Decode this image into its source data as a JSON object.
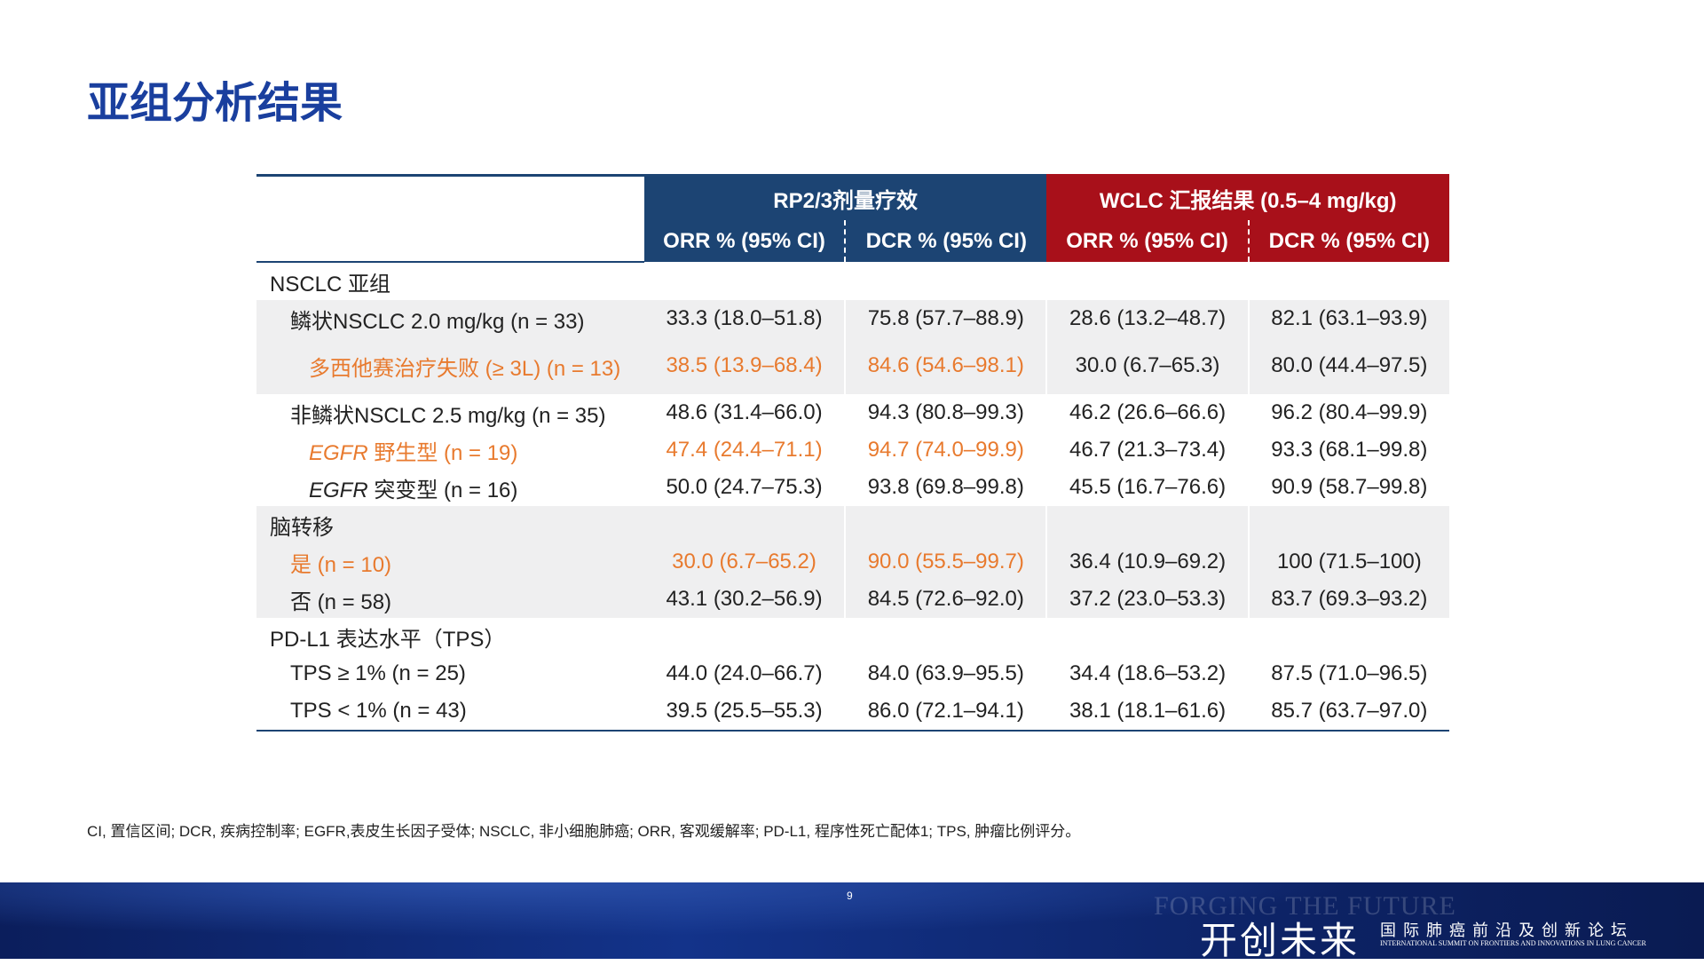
{
  "title": "亚组分析结果",
  "table": {
    "group_headers": [
      {
        "text": "RP2/3剂量疗效",
        "color": "#1c4473"
      },
      {
        "text": "WCLC 汇报结果 (0.5–4 mg/kg)",
        "color": "#a8101a"
      }
    ],
    "column_headers": [
      "ORR % (95% CI)",
      "DCR % (95% CI)",
      "ORR % (95% CI)",
      "DCR % (95% CI)"
    ],
    "sections": [
      {
        "label": "NSCLC 亚组",
        "rows": [
          {
            "label": "鳞状NSCLC 2.0 mg/kg (n = 33)",
            "shaded": true,
            "cells": [
              "33.3 (18.0–51.8)",
              "75.8 (57.7–88.9)",
              "28.6 (13.2–48.7)",
              "82.1 (63.1–93.9)"
            ],
            "children": [
              {
                "label": "多西他赛治疗失败 (≥ 3L) (n = 13)",
                "highlight": true,
                "cells": [
                  "38.5 (13.9–68.4)",
                  "84.6 (54.6–98.1)",
                  "30.0 (6.7–65.3)",
                  "80.0 (44.4–97.5)"
                ]
              }
            ]
          },
          {
            "label": "非鳞状NSCLC 2.5 mg/kg (n = 35)",
            "cells": [
              "48.6 (31.4–66.0)",
              "94.3 (80.8–99.3)",
              "46.2 (26.6–66.6)",
              "96.2 (80.4–99.9)"
            ],
            "children": [
              {
                "label_italic": "EGFR",
                "label": "野生型 (n = 19)",
                "highlight": true,
                "cells": [
                  "47.4 (24.4–71.1)",
                  "94.7 (74.0–99.9)",
                  "46.7 (21.3–73.4)",
                  "93.3 (68.1–99.8)"
                ]
              },
              {
                "label_italic": "EGFR",
                "label": "突变型 (n = 16)",
                "cells": [
                  "50.0 (24.7–75.3)",
                  "93.8 (69.8–99.8)",
                  "45.5 (16.7–76.6)",
                  "90.9 (58.7–99.8)"
                ]
              }
            ]
          }
        ]
      },
      {
        "label": "脑转移",
        "shaded": true,
        "rows": [
          {
            "label": "是 (n = 10)",
            "highlight": true,
            "cells": [
              "30.0 (6.7–65.2)",
              "90.0 (55.5–99.7)",
              "36.4 (10.9–69.2)",
              "100 (71.5–100)"
            ]
          },
          {
            "label": "否 (n = 58)",
            "cells": [
              "43.1 (30.2–56.9)",
              "84.5 (72.6–92.0)",
              "37.2 (23.0–53.3)",
              "83.7 (69.3–93.2)"
            ]
          }
        ]
      },
      {
        "label": "PD-L1 表达水平（TPS）",
        "rows": [
          {
            "label": "TPS ≥ 1% (n = 25)",
            "cells": [
              "44.0 (24.0–66.7)",
              "84.0 (63.9–95.5)",
              "34.4 (18.6–53.2)",
              "87.5 (71.0–96.5)"
            ]
          },
          {
            "label": "TPS < 1% (n = 43)",
            "cells": [
              "39.5 (25.5–55.3)",
              "86.0 (72.1–94.1)",
              "38.1 (18.1–61.6)",
              "85.7 (63.7–97.0)"
            ]
          }
        ]
      }
    ]
  },
  "footnote": "CI, 置信区间; DCR, 疾病控制率; EGFR,表皮生长因子受体; NSCLC, 非小细胞肺癌; ORR, 客观缓解率; PD-L1, 程序性死亡配体1; TPS, 肿瘤比例评分。",
  "page_number": "9",
  "footer": {
    "watermark": "FORGING THE FUTURE",
    "brand": "开创未来",
    "forum": "国际肺癌前沿及创新论坛",
    "forum_en": "INTERNATIONAL SUMMIT ON FRONTIERS AND INNOVATIONS IN LUNG CANCER"
  }
}
